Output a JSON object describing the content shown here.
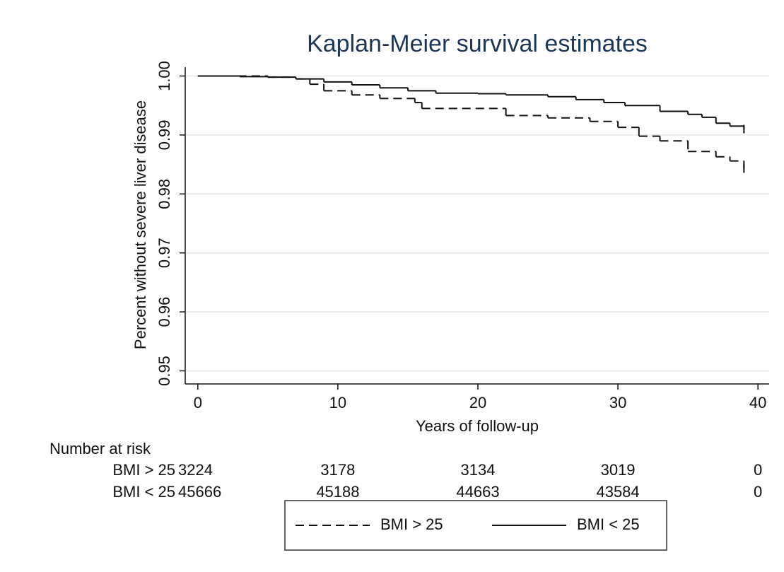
{
  "chart_data": {
    "type": "step",
    "title": "Kaplan-Meier survival estimates",
    "xlabel": "Years of follow-up",
    "ylabel": "Percent without severe liver disease",
    "xlim": [
      -0.9,
      40.8
    ],
    "ylim": [
      0.9485,
      1.0015
    ],
    "xticks": [
      0,
      10,
      20,
      30,
      40
    ],
    "yticks": [
      {
        "value": 1,
        "label": "1.00"
      },
      0.99,
      0.98,
      0.97,
      0.96,
      0.95
    ],
    "grid": true,
    "series": [
      {
        "name": "BMI > 25",
        "color": "#111111",
        "dash": true,
        "x": [
          0,
          5,
          7,
          8,
          9,
          11,
          13,
          15.5,
          16,
          22,
          25,
          28,
          30,
          31.5,
          33,
          35,
          37,
          38,
          39
        ],
        "values": [
          1.0,
          0.9998,
          0.9995,
          0.9986,
          0.9975,
          0.9968,
          0.9962,
          0.9955,
          0.9945,
          0.9933,
          0.9929,
          0.9923,
          0.9913,
          0.9898,
          0.989,
          0.9872,
          0.9863,
          0.9856,
          0.9843
        ]
      },
      {
        "name": "BMI < 25",
        "color": "#111111",
        "dash": false,
        "x": [
          0,
          3,
          5,
          7,
          9,
          11,
          13,
          15,
          17,
          20,
          22,
          25,
          27,
          29,
          30.5,
          33,
          35,
          36,
          37,
          38,
          39
        ],
        "values": [
          1.0,
          0.9999,
          0.9998,
          0.9995,
          0.999,
          0.9985,
          0.998,
          0.9975,
          0.9971,
          0.997,
          0.9968,
          0.9965,
          0.996,
          0.9955,
          0.995,
          0.994,
          0.9935,
          0.993,
          0.992,
          0.9915,
          0.991
        ]
      }
    ],
    "risk_table": {
      "title": "Number at risk",
      "rows": [
        {
          "label": "BMI > 25",
          "values": [
            3224,
            3178,
            3134,
            3019,
            0
          ]
        },
        {
          "label": "BMI < 25",
          "values": [
            45666,
            45188,
            44663,
            43584,
            0
          ]
        }
      ]
    }
  }
}
